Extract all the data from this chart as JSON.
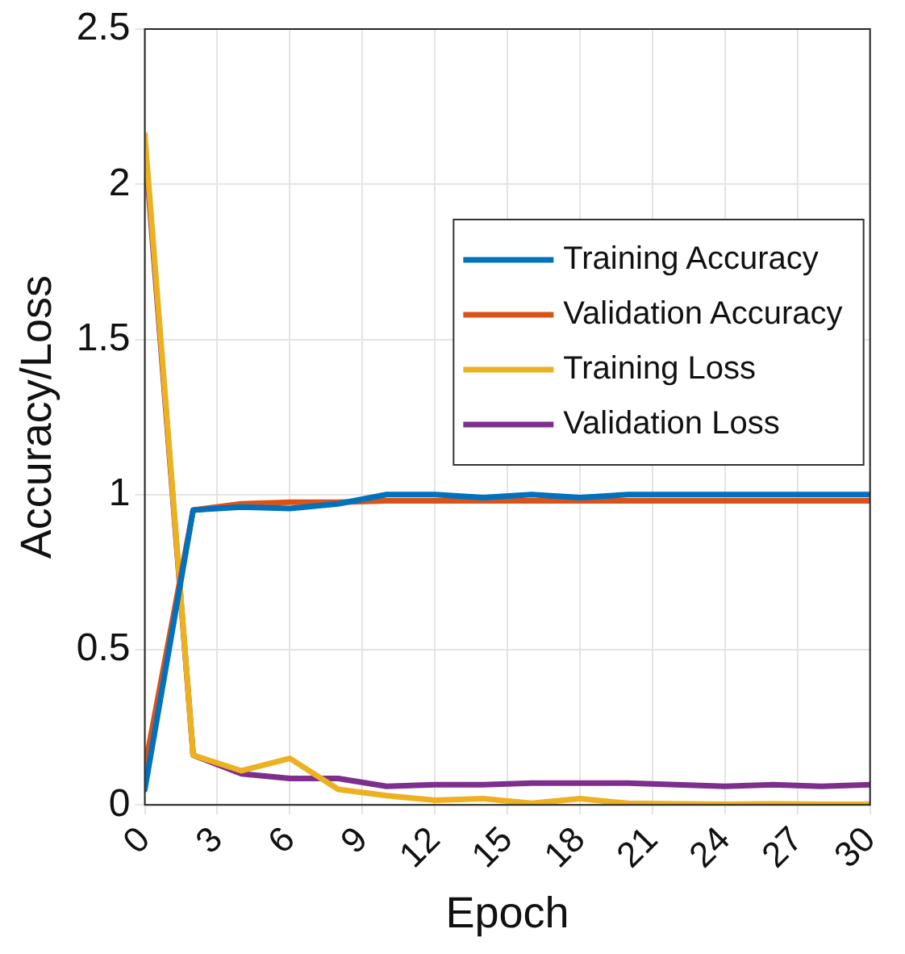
{
  "chart_data": {
    "type": "line",
    "xlabel": "Epoch",
    "ylabel": "Accuracy/Loss",
    "x": [
      0,
      2,
      4,
      6,
      8,
      10,
      12,
      14,
      16,
      18,
      20,
      22,
      24,
      26,
      28,
      30
    ],
    "xlim": [
      0,
      30
    ],
    "xticks": [
      0,
      3,
      6,
      9,
      12,
      15,
      18,
      21,
      24,
      27,
      30
    ],
    "ylim": [
      0,
      2.5
    ],
    "yticks": [
      0,
      0.5,
      1,
      1.5,
      2,
      2.5
    ],
    "grid": true,
    "legend": "top right",
    "marker": "none",
    "line_style": "solid",
    "series": [
      {
        "name": "Training Accuracy",
        "color": "#0072bd",
        "values": [
          0.05,
          0.95,
          0.96,
          0.955,
          0.97,
          1.0,
          1.0,
          0.99,
          1.0,
          0.99,
          1.0,
          1.0,
          1.0,
          1.0,
          1.0,
          1.0
        ]
      },
      {
        "name": "Validation Accuracy",
        "color": "#d95319",
        "values": [
          0.12,
          0.95,
          0.97,
          0.975,
          0.975,
          0.98,
          0.98,
          0.98,
          0.98,
          0.98,
          0.98,
          0.98,
          0.98,
          0.98,
          0.98,
          0.98
        ]
      },
      {
        "name": "Training Loss",
        "color": "#edb120",
        "values": [
          2.16,
          0.16,
          0.11,
          0.15,
          0.05,
          0.03,
          0.015,
          0.02,
          0.005,
          0.02,
          0.005,
          0.003,
          0.002,
          0.003,
          0.002,
          0.002
        ]
      },
      {
        "name": "Validation Loss",
        "color": "#7e2f8e",
        "values": [
          2.13,
          0.16,
          0.1,
          0.085,
          0.085,
          0.06,
          0.065,
          0.065,
          0.07,
          0.07,
          0.07,
          0.065,
          0.06,
          0.065,
          0.06,
          0.065
        ]
      }
    ]
  }
}
